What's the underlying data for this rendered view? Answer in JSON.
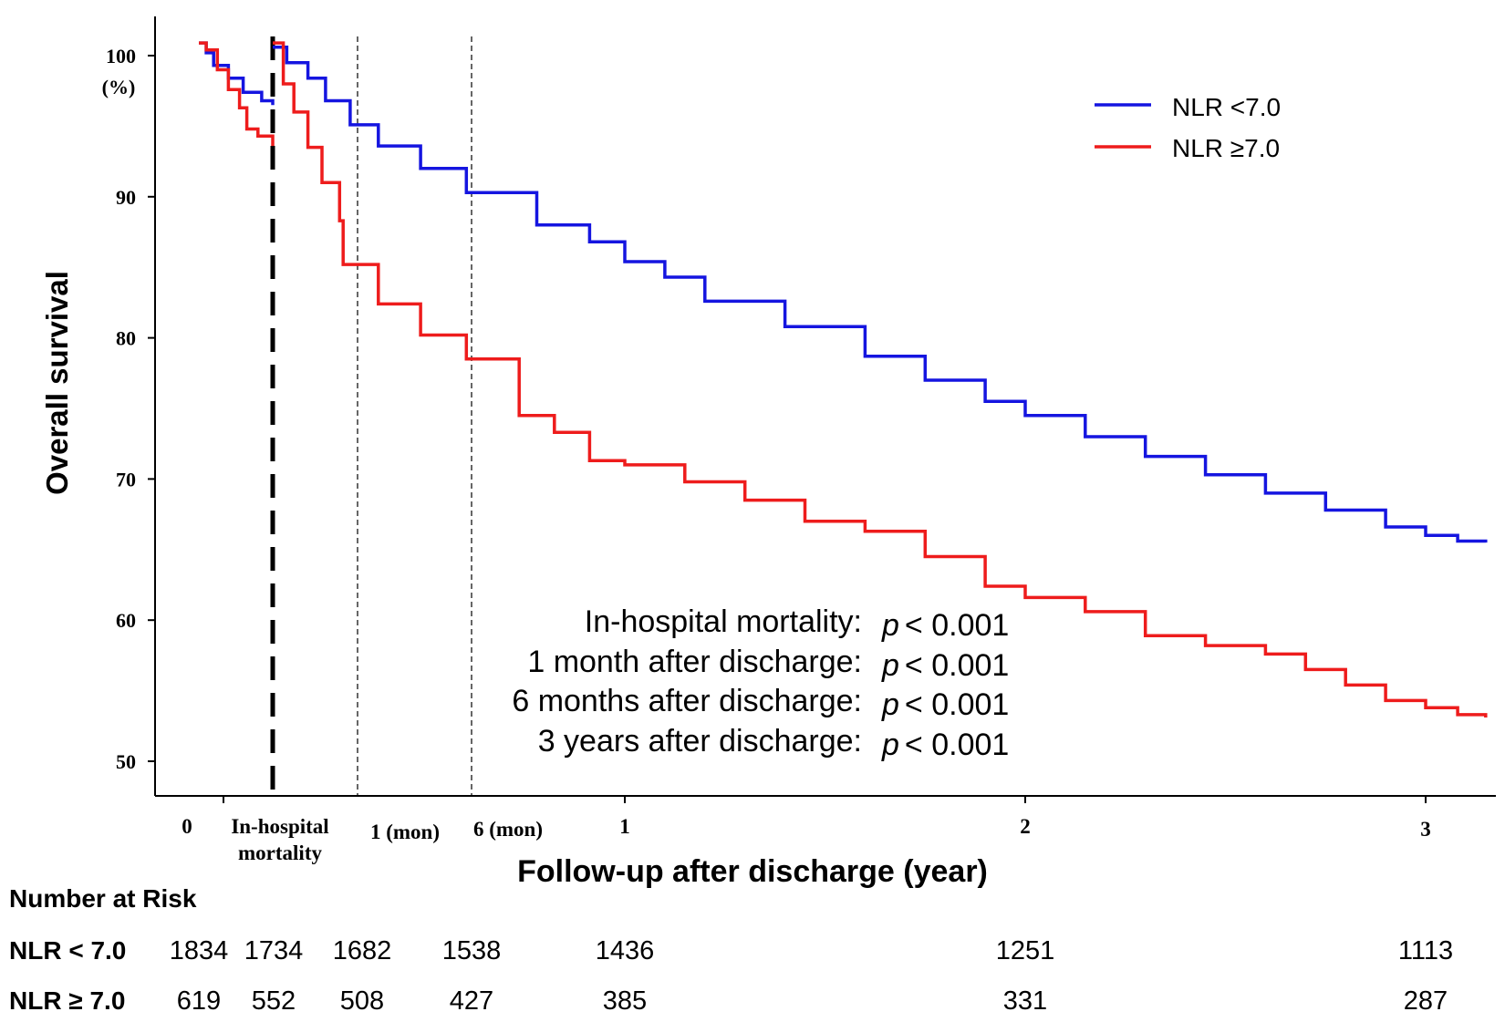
{
  "chart_data": {
    "type": "line",
    "y_axis": {
      "label": "Overall survival",
      "unit_label": "(%)",
      "ylim": [
        47,
        102
      ],
      "ticks": [
        50,
        60,
        70,
        80,
        90,
        100
      ]
    },
    "x_axis": {
      "label": "Follow-up after discharge (year)",
      "tick_labels": [
        {
          "key": "zero",
          "text": "0"
        },
        {
          "key": "inhosp_1",
          "text": "In-hospital"
        },
        {
          "key": "inhosp_2",
          "text": "mortality"
        },
        {
          "key": "one_mon",
          "text": "1 (mon)"
        },
        {
          "key": "six_mon",
          "text": "6 (mon)"
        },
        {
          "key": "year1",
          "text": "1"
        },
        {
          "key": "year2",
          "text": "2"
        },
        {
          "key": "year3",
          "text": "3"
        }
      ],
      "xlim_years": [
        0,
        3.15
      ]
    },
    "series": [
      {
        "name": "NLR <7.0",
        "color": "#1515e0",
        "in_hospital": [
          [
            0,
            100.9
          ],
          [
            0.02,
            100.2
          ],
          [
            0.04,
            99.3
          ],
          [
            0.08,
            98.4
          ],
          [
            0.12,
            97.4
          ],
          [
            0.17,
            96.8
          ],
          [
            0.2,
            96.5
          ]
        ],
        "post_discharge": [
          [
            0,
            100.6
          ],
          [
            0.04,
            99.5
          ],
          [
            0.1,
            98.4
          ],
          [
            0.15,
            96.8
          ],
          [
            0.22,
            95.1
          ],
          [
            0.3,
            93.6
          ],
          [
            0.42,
            92.0
          ],
          [
            0.55,
            90.3
          ],
          [
            0.75,
            88.0
          ],
          [
            0.9,
            86.8
          ],
          [
            1.0,
            85.4
          ],
          [
            1.1,
            84.3
          ],
          [
            1.2,
            82.6
          ],
          [
            1.4,
            80.8
          ],
          [
            1.6,
            78.7
          ],
          [
            1.75,
            77.0
          ],
          [
            1.9,
            75.5
          ],
          [
            2.0,
            74.5
          ],
          [
            2.15,
            73.0
          ],
          [
            2.3,
            71.6
          ],
          [
            2.45,
            70.3
          ],
          [
            2.6,
            69.0
          ],
          [
            2.75,
            67.8
          ],
          [
            2.9,
            66.6
          ],
          [
            3.0,
            66.0
          ],
          [
            3.08,
            65.6
          ],
          [
            3.15,
            65.5
          ]
        ]
      },
      {
        "name": "NLR ≥7.0",
        "color": "#ee1c1c",
        "in_hospital": [
          [
            0,
            100.9
          ],
          [
            0.02,
            100.4
          ],
          [
            0.05,
            99.0
          ],
          [
            0.08,
            97.6
          ],
          [
            0.11,
            96.3
          ],
          [
            0.13,
            94.8
          ],
          [
            0.16,
            94.3
          ],
          [
            0.2,
            93.6
          ]
        ],
        "post_discharge": [
          [
            0,
            100.9
          ],
          [
            0.03,
            98.0
          ],
          [
            0.06,
            96.0
          ],
          [
            0.1,
            93.5
          ],
          [
            0.14,
            91.0
          ],
          [
            0.19,
            88.3
          ],
          [
            0.2,
            85.2
          ],
          [
            0.3,
            82.4
          ],
          [
            0.42,
            80.2
          ],
          [
            0.55,
            78.5
          ],
          [
            0.7,
            74.5
          ],
          [
            0.8,
            73.3
          ],
          [
            0.9,
            71.3
          ],
          [
            1.0,
            71.0
          ],
          [
            1.15,
            69.8
          ],
          [
            1.3,
            68.5
          ],
          [
            1.45,
            67.0
          ],
          [
            1.6,
            66.3
          ],
          [
            1.75,
            64.5
          ],
          [
            1.9,
            62.4
          ],
          [
            2.0,
            61.6
          ],
          [
            2.15,
            60.6
          ],
          [
            2.3,
            58.9
          ],
          [
            2.45,
            58.2
          ],
          [
            2.6,
            57.6
          ],
          [
            2.7,
            56.5
          ],
          [
            2.8,
            55.4
          ],
          [
            2.9,
            54.3
          ],
          [
            3.0,
            53.8
          ],
          [
            3.08,
            53.3
          ],
          [
            3.15,
            53.1
          ]
        ]
      }
    ],
    "legend": {
      "position": "top-right",
      "items": [
        {
          "label": "NLR <7.0",
          "color": "#1515e0"
        },
        {
          "label": "NLR ≥7.0",
          "color": "#ee1c1c"
        }
      ]
    },
    "annotations": {
      "pvalues": [
        {
          "label": "In-hospital mortality:",
          "p": "p",
          "value": "< 0.001"
        },
        {
          "label": "1 month after discharge:",
          "p": "p",
          "value": "< 0.001"
        },
        {
          "label": "6 months after discharge:",
          "p": "p",
          "value": "< 0.001"
        },
        {
          "label": "3 years after discharge:",
          "p": "p",
          "value": "< 0.001"
        }
      ]
    },
    "risk_table": {
      "title": "Number at Risk",
      "rows": [
        {
          "label": "NLR < 7.0",
          "values": [
            "1834",
            "1734",
            "1682",
            "1538",
            "1436",
            "1251",
            "1113"
          ]
        },
        {
          "label": "NLR ≥ 7.0",
          "values": [
            "619",
            "552",
            "508",
            "427",
            "385",
            "331",
            "287"
          ]
        }
      ]
    }
  }
}
